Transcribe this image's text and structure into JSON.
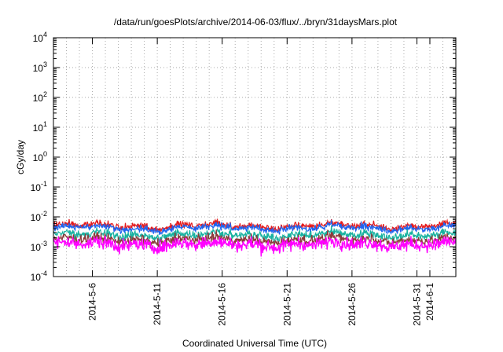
{
  "chart_data": {
    "type": "line",
    "title": "/data/run/goesPlots/archive/2014-06-03/flux/../bryn/31daysMars.plot",
    "xlabel": "Coordinated Universal Time (UTC)",
    "ylabel": "cGy/day",
    "yscale": "log",
    "ylim": [
      0.0001,
      10000
    ],
    "xlim": [
      "2014-05-03",
      "2014-06-03"
    ],
    "grid": true,
    "y_ticks": [
      {
        "base": "10",
        "exp": "4"
      },
      {
        "base": "10",
        "exp": "3"
      },
      {
        "base": "10",
        "exp": "2"
      },
      {
        "base": "10",
        "exp": "1"
      },
      {
        "base": "10",
        "exp": "0"
      },
      {
        "base": "10",
        "exp": "-1"
      },
      {
        "base": "10",
        "exp": "-2"
      },
      {
        "base": "10",
        "exp": "-3"
      },
      {
        "base": "10",
        "exp": "-4"
      }
    ],
    "x_ticks": [
      "2014-5-6",
      "2014-5-11",
      "2014-5-16",
      "2014-5-21",
      "2014-5-26",
      "2014-5-31",
      "2014-6-1"
    ],
    "series": [
      {
        "color": "#e41a1c",
        "level": 0.005,
        "noise": 0.13,
        "sampling": "hourly"
      },
      {
        "color": "#1e64f0",
        "level": 0.0042,
        "noise": 0.12,
        "sampling": "hourly"
      },
      {
        "color": "#18b2a0",
        "level": 0.0025,
        "noise": 0.18,
        "sampling": "hourly"
      },
      {
        "color": "#8b3a3a",
        "level": 0.0017,
        "noise": 0.2,
        "sampling": "hourly"
      },
      {
        "color": "#ff00ff",
        "level": 0.0012,
        "noise": 0.3,
        "sampling": "hourly"
      }
    ]
  }
}
